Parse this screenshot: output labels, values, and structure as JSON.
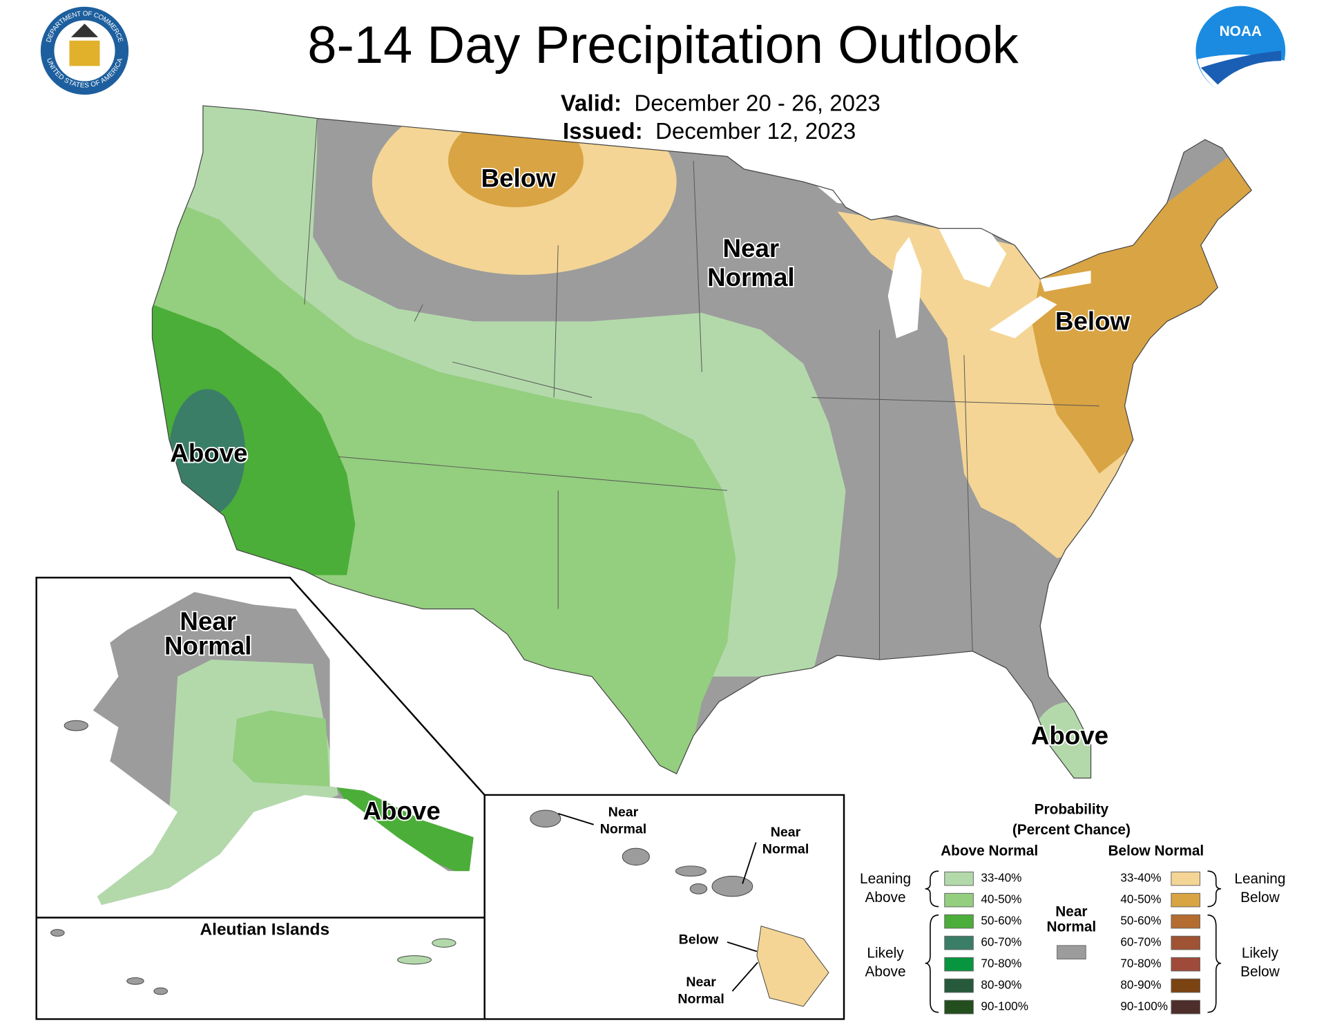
{
  "header": {
    "title": "8-14 Day Precipitation Outlook",
    "valid_label": "Valid:",
    "valid_dates": "December 20 - 26, 2023",
    "issued_label": "Issued:",
    "issued_date": "December 12, 2023",
    "doc_seal": {
      "top": "DEPARTMENT OF COMMERCE",
      "bottom": "UNITED STATES OF AMERICA"
    },
    "noaa_logo": "NOAA"
  },
  "map_labels": [
    {
      "lines": [
        "Below"
      ]
    },
    {
      "lines": [
        "Near",
        "Normal"
      ]
    },
    {
      "lines": [
        "Below"
      ]
    },
    {
      "lines": [
        "Above"
      ]
    },
    {
      "lines": [
        "Above"
      ]
    },
    {
      "lines": [
        "Near",
        "Normal"
      ]
    },
    {
      "lines": [
        "Above"
      ]
    },
    {
      "lines": [
        "Near",
        "Normal"
      ]
    },
    {
      "lines": [
        "Near",
        "Normal"
      ]
    },
    {
      "lines": [
        "Below"
      ]
    },
    {
      "lines": [
        "Near",
        "Normal"
      ]
    }
  ],
  "insets": {
    "aleutian_title": "Aleutian Islands"
  },
  "legend": {
    "title": [
      "Probability",
      "(Percent Chance)"
    ],
    "above_heading": "Above Normal",
    "below_heading": "Below Normal",
    "above": [
      {
        "range": "33-40%",
        "color": "#b3d9ab"
      },
      {
        "range": "40-50%",
        "color": "#94ce7f"
      },
      {
        "range": "50-60%",
        "color": "#4bae38"
      },
      {
        "range": "60-70%",
        "color": "#3a7e68"
      },
      {
        "range": "70-80%",
        "color": "#07963f"
      },
      {
        "range": "80-90%",
        "color": "#265a3b"
      },
      {
        "range": "90-100%",
        "color": "#234e1d"
      }
    ],
    "below": [
      {
        "range": "33-40%",
        "color": "#f4d595"
      },
      {
        "range": "40-50%",
        "color": "#d9a443"
      },
      {
        "range": "50-60%",
        "color": "#b46c31"
      },
      {
        "range": "60-70%",
        "color": "#9f5334"
      },
      {
        "range": "70-80%",
        "color": "#9f4a3a"
      },
      {
        "range": "80-90%",
        "color": "#7b4212"
      },
      {
        "range": "90-100%",
        "color": "#4e2e2a"
      }
    ],
    "near_normal": {
      "lines": [
        "Near",
        "Normal"
      ],
      "color": "#9c9c9c"
    },
    "leaning_above": [
      "Leaning",
      "Above"
    ],
    "likely_above": [
      "Likely",
      "Above"
    ],
    "leaning_below": [
      "Leaning",
      "Below"
    ],
    "likely_below": [
      "Likely",
      "Below"
    ]
  }
}
